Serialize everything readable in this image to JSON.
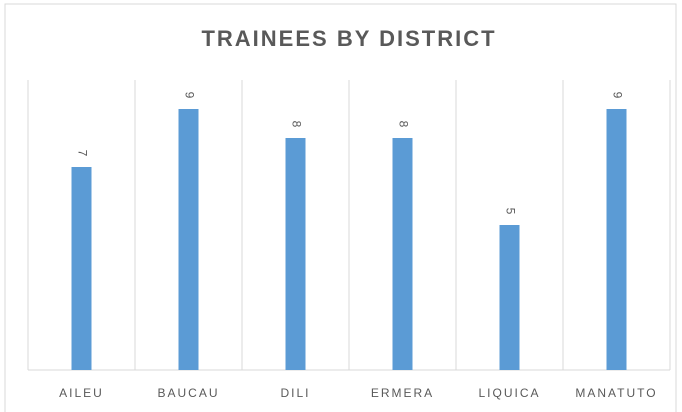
{
  "chart_data": {
    "type": "bar",
    "title": "TRAINEES BY DISTRICT",
    "categories": [
      "AILEU",
      "BAUCAU",
      "DILI",
      "ERMERA",
      "LIQUICA",
      "MANATUTO"
    ],
    "values": [
      7,
      9,
      8,
      8,
      5,
      9
    ],
    "color": "#5b9bd5",
    "ylim": [
      0,
      10
    ],
    "grid": true
  }
}
